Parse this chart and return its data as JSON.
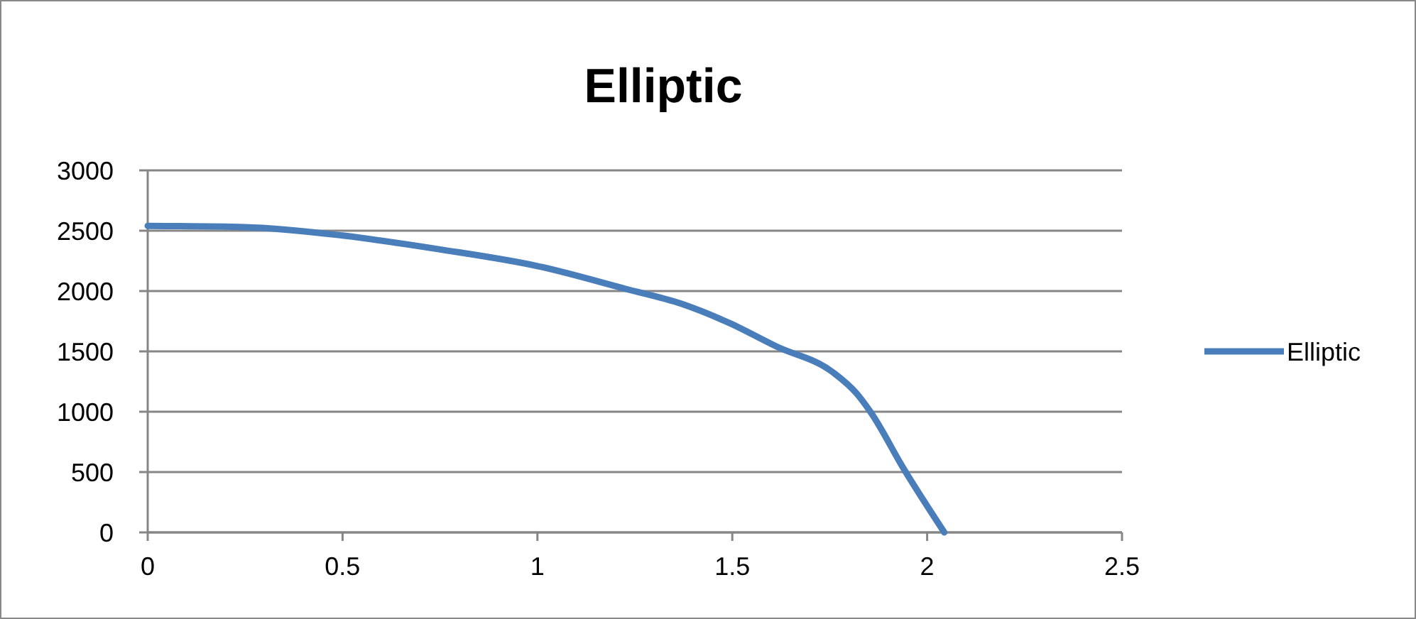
{
  "chart_data": {
    "type": "line",
    "title": "Elliptic",
    "series": [
      {
        "name": "Elliptic",
        "color": "#4a7ebb",
        "x": [
          0,
          0.25,
          0.5,
          0.75,
          1,
          1.225,
          1.37,
          1.492,
          1.613,
          1.759,
          1.82,
          1.856,
          1.941,
          2.044
        ],
        "values": [
          2540,
          2530,
          2460,
          2345,
          2207,
          2019,
          1894,
          1736,
          1541,
          1325,
          1148,
          992,
          521,
          0
        ]
      }
    ],
    "xlim": [
      0,
      2.5
    ],
    "xticks": [
      0,
      0.5,
      1,
      1.5,
      2,
      2.5
    ],
    "ylim": [
      0,
      3000
    ],
    "yticks": [
      0,
      500,
      1000,
      1500,
      2000,
      2500,
      3000
    ],
    "grid": "y",
    "legend": "right",
    "marker": "none",
    "line_style": "solid"
  }
}
